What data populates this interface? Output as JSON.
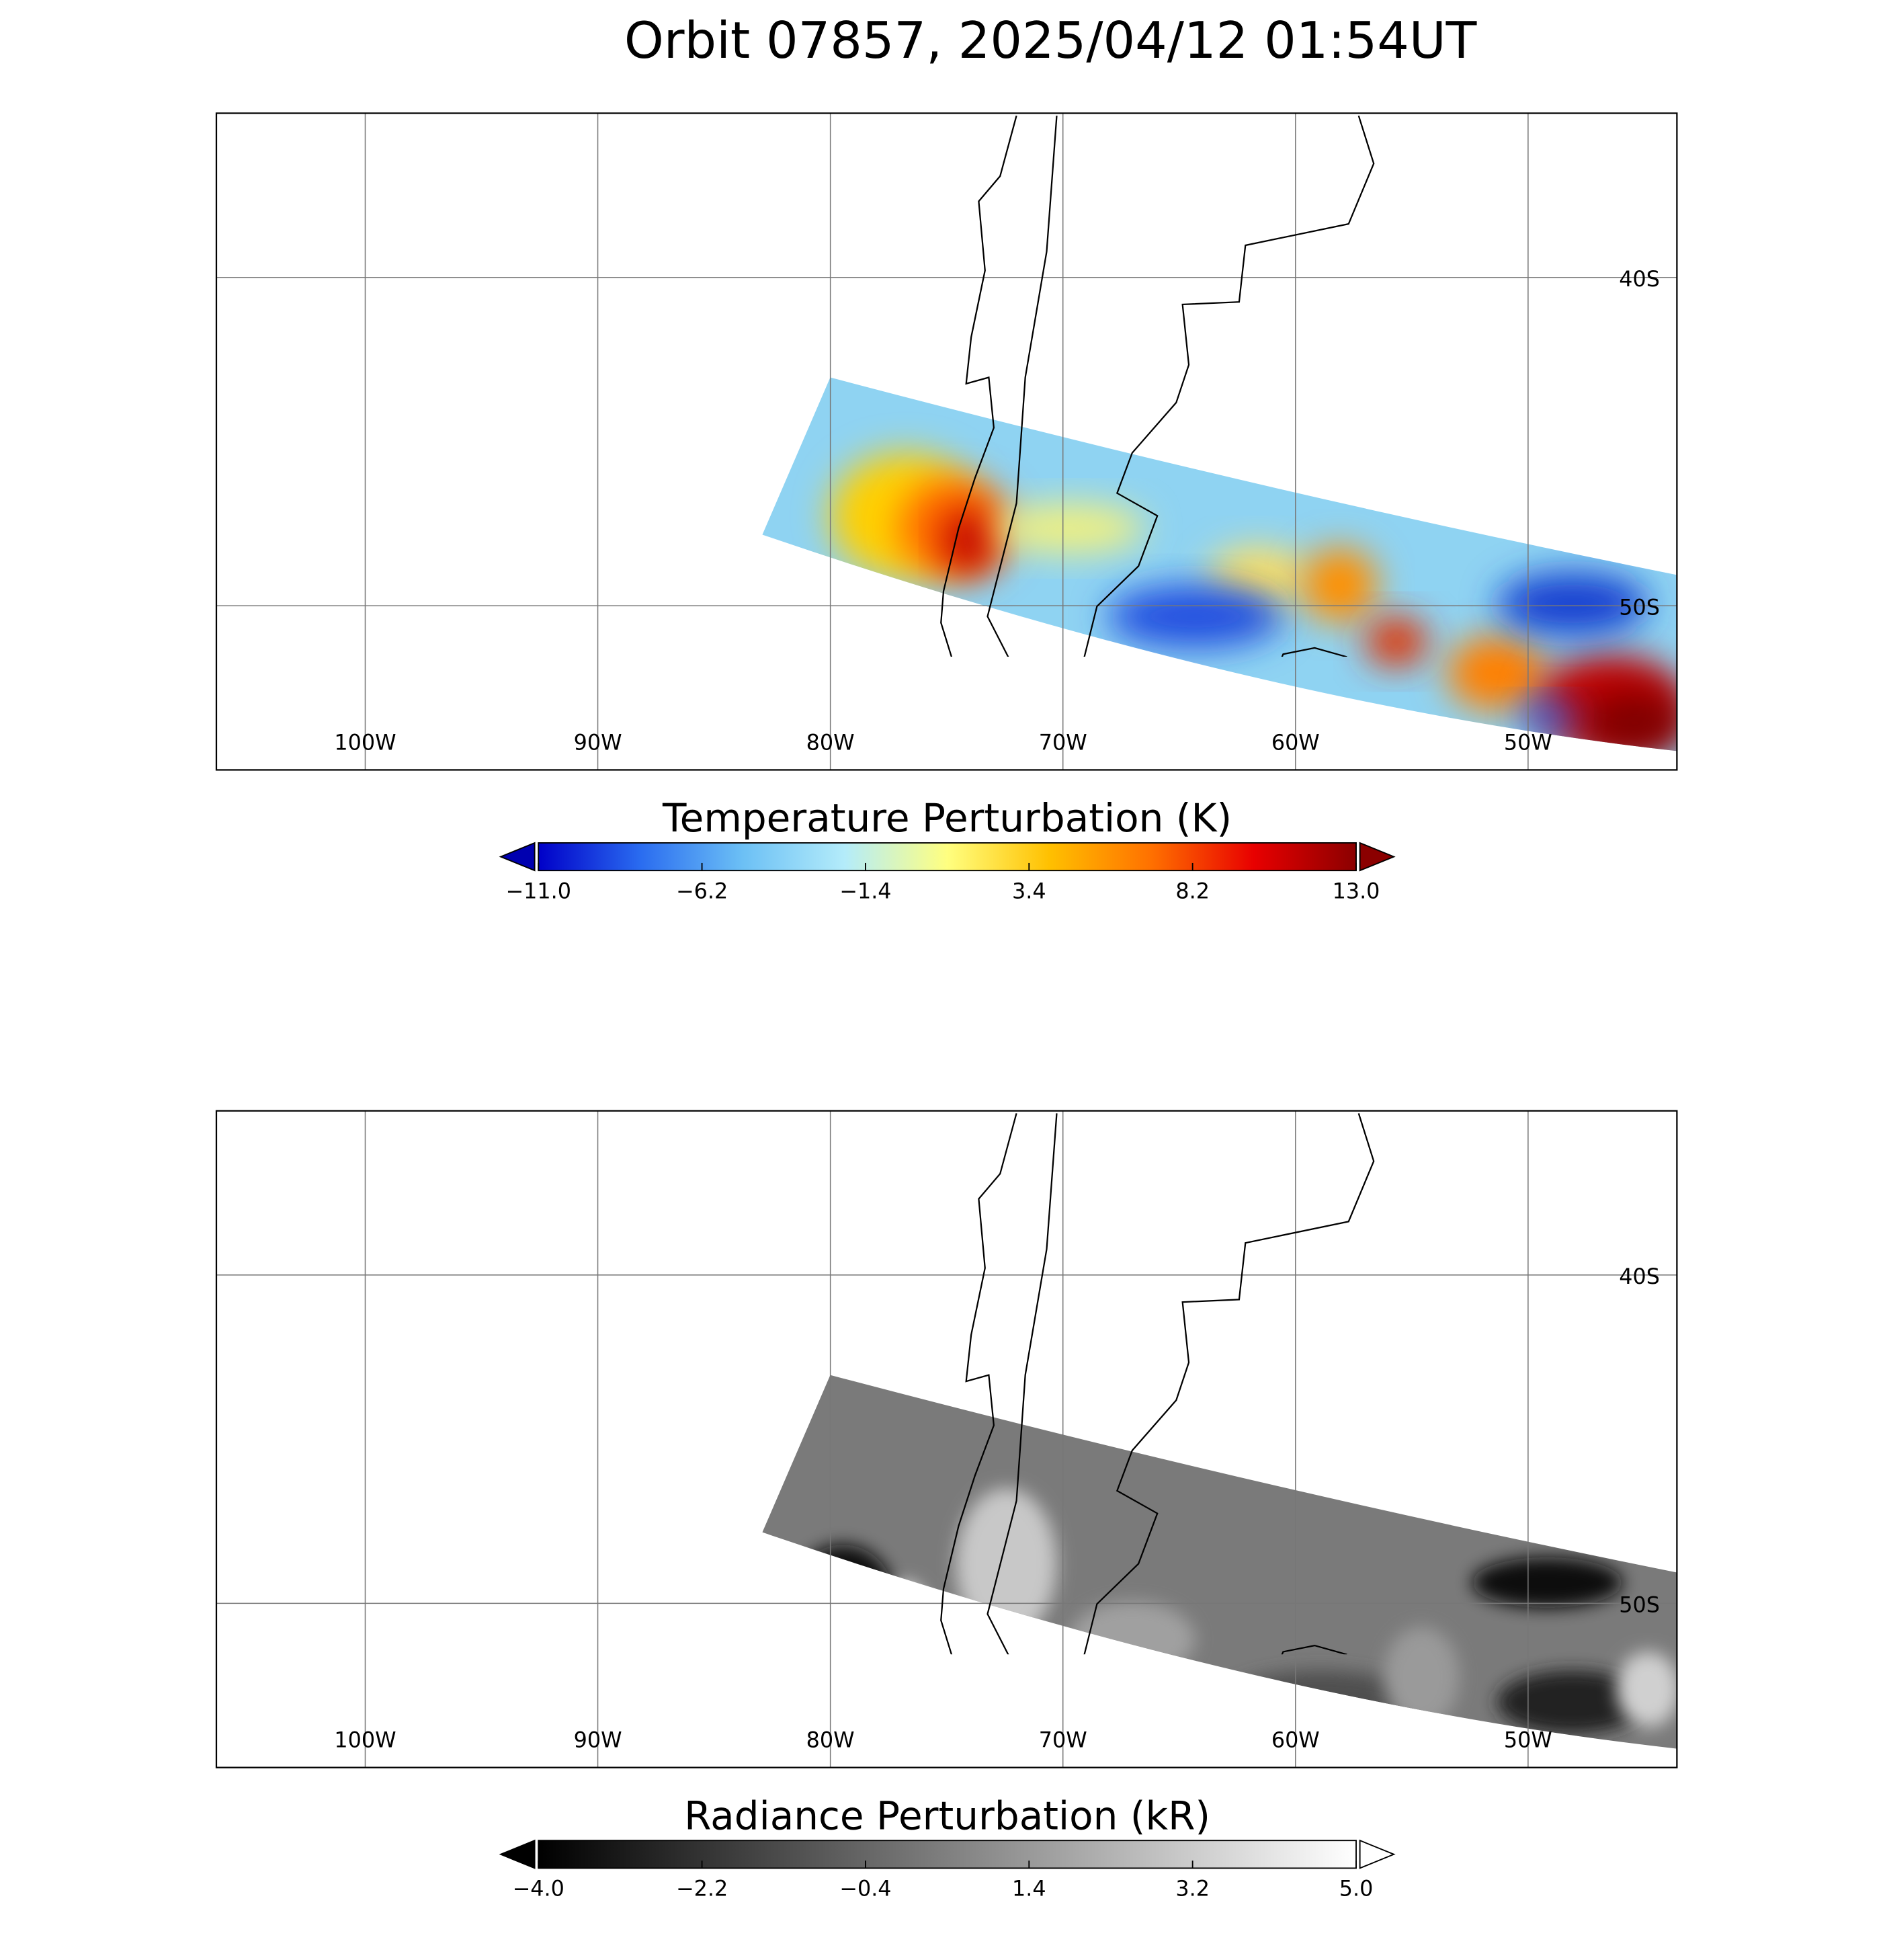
{
  "title": "Orbit 07857, 2025/04/12 01:54UT",
  "panels": [
    {
      "map": {
        "lonlim": [
          -106.4,
          -43.6
        ],
        "latlim": [
          -55,
          -35
        ],
        "lon_ticks": [
          {
            "value": -100,
            "label": "100W"
          },
          {
            "value": -90,
            "label": "90W"
          },
          {
            "value": -80,
            "label": "80W"
          },
          {
            "value": -70,
            "label": "70W"
          },
          {
            "value": -60,
            "label": "60W"
          },
          {
            "value": -50,
            "label": "50W"
          }
        ],
        "lat_ticks": [
          {
            "value": -40,
            "label": "40S"
          },
          {
            "value": -50,
            "label": "50S"
          }
        ]
      },
      "colorbar": {
        "title": "Temperature Perturbation (K)",
        "range": [
          -11,
          13
        ],
        "ticks": [
          {
            "value": -11,
            "label": "−11.0"
          },
          {
            "value": -6.2,
            "label": "−6.2"
          },
          {
            "value": -1.4,
            "label": "−1.4"
          },
          {
            "value": 3.4,
            "label": "3.4"
          },
          {
            "value": 8.2,
            "label": "8.2"
          },
          {
            "value": 13,
            "label": "13.0"
          }
        ],
        "colors": [
          "#0000c8",
          "#2a6cf0",
          "#6cc0f5",
          "#b4ecfa",
          "#ffff80",
          "#ffc000",
          "#ff7000",
          "#e80000",
          "#8b0000"
        ],
        "under_color": "#0000b0",
        "over_color": "#8b0000"
      }
    },
    {
      "map": {
        "lonlim": [
          -106.4,
          -43.6
        ],
        "latlim": [
          -55,
          -35
        ],
        "lon_ticks": [
          {
            "value": -100,
            "label": "100W"
          },
          {
            "value": -90,
            "label": "90W"
          },
          {
            "value": -80,
            "label": "80W"
          },
          {
            "value": -70,
            "label": "70W"
          },
          {
            "value": -60,
            "label": "60W"
          },
          {
            "value": -50,
            "label": "50W"
          }
        ],
        "lat_ticks": [
          {
            "value": -40,
            "label": "40S"
          },
          {
            "value": -50,
            "label": "50S"
          }
        ]
      },
      "colorbar": {
        "title": "Radiance Perturbation (kR)",
        "range": [
          -4,
          5
        ],
        "ticks": [
          {
            "value": -4,
            "label": "−4.0"
          },
          {
            "value": -2.2,
            "label": "−2.2"
          },
          {
            "value": -0.4,
            "label": "−0.4"
          },
          {
            "value": 1.4,
            "label": "1.4"
          },
          {
            "value": 3.2,
            "label": "3.2"
          },
          {
            "value": 5,
            "label": "5.0"
          }
        ],
        "colors": [
          "#000000",
          "#ffffff"
        ],
        "under_color": "#000000",
        "over_color": "#ffffff"
      }
    }
  ]
}
